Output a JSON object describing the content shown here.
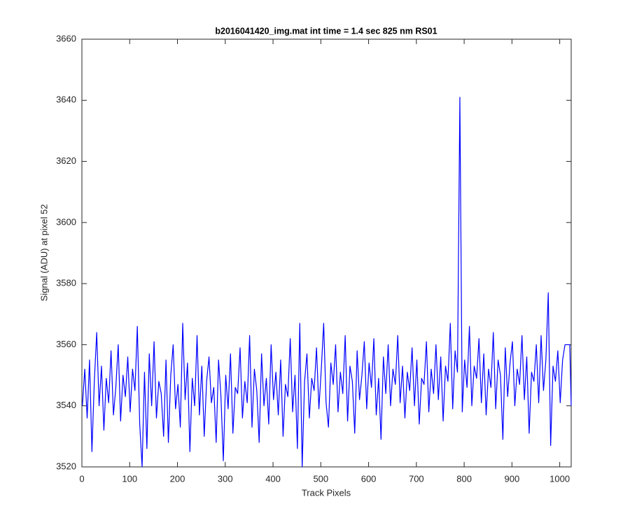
{
  "chart_data": {
    "type": "line",
    "title": "b2016041420_img.mat int time = 1.4 sec  825 nm RS01",
    "xlabel": "Track Pixels",
    "ylabel": "Signal (ADU) at pixel 52",
    "xlim": [
      0,
      1024
    ],
    "xticks": [
      0,
      100,
      200,
      300,
      400,
      500,
      600,
      700,
      800,
      900,
      1000
    ],
    "ylim": [
      3520,
      3660
    ],
    "yticks": [
      3520,
      3540,
      3560,
      3580,
      3600,
      3620,
      3640,
      3660
    ],
    "grid": false,
    "x": [
      1,
      6,
      11,
      16,
      21,
      26,
      31,
      36,
      41,
      46,
      51,
      56,
      61,
      66,
      71,
      76,
      81,
      86,
      91,
      96,
      101,
      106,
      111,
      116,
      121,
      126,
      131,
      136,
      141,
      146,
      151,
      156,
      161,
      166,
      171,
      176,
      181,
      186,
      191,
      196,
      201,
      206,
      211,
      216,
      221,
      226,
      231,
      236,
      241,
      246,
      251,
      256,
      261,
      266,
      271,
      276,
      281,
      286,
      291,
      296,
      301,
      306,
      311,
      316,
      321,
      326,
      331,
      336,
      341,
      346,
      351,
      356,
      361,
      366,
      371,
      376,
      381,
      386,
      391,
      396,
      401,
      406,
      411,
      416,
      421,
      426,
      431,
      436,
      441,
      446,
      451,
      456,
      461,
      466,
      471,
      476,
      481,
      486,
      491,
      496,
      501,
      506,
      511,
      516,
      521,
      526,
      531,
      536,
      541,
      546,
      551,
      556,
      561,
      566,
      571,
      576,
      581,
      586,
      591,
      596,
      601,
      606,
      611,
      616,
      621,
      626,
      631,
      636,
      641,
      646,
      651,
      656,
      661,
      666,
      671,
      676,
      681,
      686,
      691,
      696,
      701,
      706,
      711,
      716,
      721,
      726,
      731,
      736,
      741,
      746,
      751,
      756,
      761,
      766,
      771,
      776,
      781,
      786,
      791,
      796,
      801,
      806,
      811,
      816,
      821,
      826,
      831,
      836,
      841,
      846,
      851,
      856,
      861,
      866,
      871,
      876,
      881,
      886,
      891,
      896,
      901,
      906,
      911,
      916,
      921,
      926,
      931,
      936,
      941,
      946,
      951,
      956,
      961,
      966,
      971,
      976,
      981,
      986,
      991,
      996,
      1001,
      1006,
      1011,
      1016,
      1021,
      1024
    ],
    "series": [
      {
        "color": "#0000ff",
        "values": [
          3540,
          3552,
          3536,
          3555,
          3525,
          3548,
          3564,
          3540,
          3553,
          3532,
          3549,
          3541,
          3558,
          3537,
          3546,
          3560,
          3535,
          3550,
          3543,
          3556,
          3538,
          3552,
          3545,
          3566,
          3534,
          3520,
          3551,
          3526,
          3557,
          3540,
          3561,
          3536,
          3548,
          3544,
          3530,
          3555,
          3528,
          3550,
          3560,
          3539,
          3547,
          3533,
          3567,
          3542,
          3554,
          3525,
          3549,
          3540,
          3563,
          3537,
          3553,
          3530,
          3548,
          3556,
          3541,
          3546,
          3528,
          3555,
          3543,
          3522,
          3550,
          3539,
          3557,
          3531,
          3546,
          3544,
          3559,
          3536,
          3548,
          3541,
          3563,
          3533,
          3552,
          3545,
          3528,
          3557,
          3540,
          3549,
          3534,
          3560,
          3542,
          3551,
          3537,
          3555,
          3530,
          3547,
          3543,
          3562,
          3538,
          3550,
          3526,
          3567,
          3520,
          3548,
          3557,
          3536,
          3549,
          3545,
          3559,
          3539,
          3552,
          3567,
          3541,
          3533,
          3554,
          3547,
          3560,
          3538,
          3551,
          3544,
          3563,
          3535,
          3553,
          3548,
          3531,
          3558,
          3542,
          3550,
          3561,
          3539,
          3554,
          3546,
          3562,
          3537,
          3549,
          3529,
          3556,
          3544,
          3560,
          3540,
          3552,
          3547,
          3563,
          3541,
          3553,
          3536,
          3551,
          3545,
          3559,
          3540,
          3555,
          3534,
          3549,
          3547,
          3561,
          3538,
          3552,
          3544,
          3560,
          3542,
          3556,
          3535,
          3553,
          3548,
          3567,
          3539,
          3558,
          3551,
          3641,
          3538,
          3555,
          3546,
          3566,
          3540,
          3553,
          3549,
          3562,
          3541,
          3557,
          3537,
          3552,
          3546,
          3564,
          3539,
          3555,
          3550,
          3529,
          3559,
          3543,
          3554,
          3561,
          3540,
          3552,
          3547,
          3563,
          3542,
          3556,
          3531,
          3551,
          3548,
          3560,
          3541,
          3563,
          3545,
          3555,
          3577,
          3527,
          3553,
          3548,
          3558,
          3541,
          3555,
          3560,
          3560,
          3560,
          3540
        ]
      }
    ]
  }
}
